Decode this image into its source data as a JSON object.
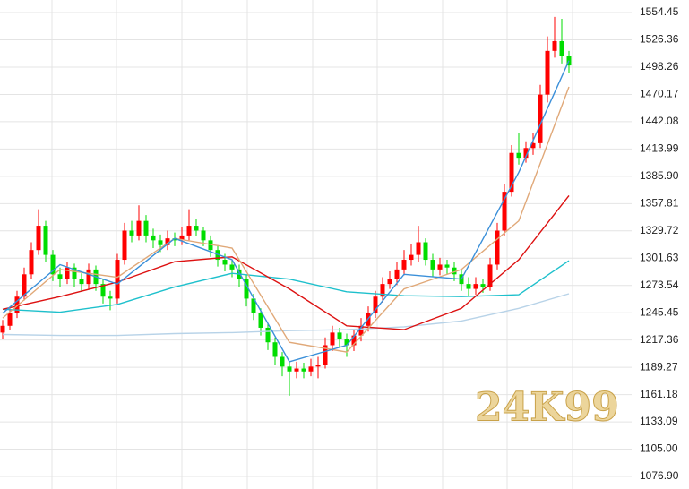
{
  "chart_data": {
    "type": "candlestick",
    "watermark": "24K99",
    "ylim": [
      1064.0,
      1567.4
    ],
    "yticks": [
      1554.45,
      1526.36,
      1498.26,
      1470.17,
      1442.08,
      1413.99,
      {
        "value": 1385.9,
        "label": "1385.90"
      },
      1357.81,
      1329.72,
      1301.63,
      1273.54,
      1245.45,
      1217.36,
      1189.27,
      1161.18,
      1133.09,
      {
        "value": 1105.0,
        "label": "1105.00"
      },
      {
        "value": 1076.9,
        "label": "1076.90"
      }
    ],
    "grid": true,
    "up_color": "#ff0000",
    "down_color": "#00dd00",
    "open": [
      1225,
      1232,
      1245,
      1262,
      1285,
      1310,
      1335,
      1305,
      1285,
      1280,
      1292,
      1280,
      1275,
      1290,
      1275,
      1262,
      1260,
      1300,
      1330,
      1325,
      1340,
      1325,
      1320,
      1315,
      1322,
      1320,
      1325,
      1335,
      1330,
      1320,
      1310,
      1300,
      1295,
      1290,
      1280,
      1260,
      1245,
      1230,
      1215,
      1200,
      1190,
      1185,
      1188,
      1185,
      1190,
      1192,
      1212,
      1225,
      1218,
      1212,
      1222,
      1232,
      1245,
      1262,
      1275,
      1280,
      1290,
      1300,
      1305,
      1318,
      1300,
      1290,
      1295,
      1292,
      1285,
      1275,
      1270,
      1275,
      1272,
      1295,
      1330,
      1370,
      1410,
      1405,
      1415,
      1420,
      1470,
      1515,
      1525,
      1510
    ],
    "high": [
      1238,
      1250,
      1268,
      1292,
      1318,
      1352,
      1340,
      1310,
      1292,
      1298,
      1296,
      1286,
      1296,
      1294,
      1280,
      1268,
      1306,
      1338,
      1340,
      1356,
      1346,
      1332,
      1326,
      1330,
      1328,
      1334,
      1352,
      1342,
      1334,
      1325,
      1315,
      1306,
      1300,
      1295,
      1284,
      1265,
      1250,
      1235,
      1220,
      1205,
      1195,
      1195,
      1194,
      1198,
      1200,
      1220,
      1232,
      1230,
      1224,
      1228,
      1240,
      1252,
      1268,
      1282,
      1288,
      1298,
      1310,
      1316,
      1335,
      1322,
      1306,
      1302,
      1300,
      1298,
      1290,
      1282,
      1282,
      1280,
      1302,
      1338,
      1378,
      1418,
      1430,
      1422,
      1430,
      1480,
      1530,
      1550,
      1548,
      1515
    ],
    "low": [
      1218,
      1228,
      1240,
      1258,
      1280,
      1305,
      1298,
      1278,
      1272,
      1275,
      1272,
      1268,
      1270,
      1268,
      1255,
      1248,
      1255,
      1295,
      1318,
      1320,
      1318,
      1312,
      1308,
      1310,
      1314,
      1315,
      1320,
      1324,
      1314,
      1303,
      1293,
      1288,
      1282,
      1272,
      1252,
      1238,
      1222,
      1207,
      1192,
      1180,
      1160,
      1178,
      1178,
      1180,
      1178,
      1188,
      1206,
      1210,
      1200,
      1206,
      1216,
      1226,
      1240,
      1256,
      1270,
      1274,
      1284,
      1294,
      1298,
      1294,
      1283,
      1284,
      1285,
      1278,
      1268,
      1262,
      1264,
      1266,
      1268,
      1290,
      1325,
      1365,
      1398,
      1400,
      1408,
      1415,
      1462,
      1508,
      1502,
      1492
    ],
    "close": [
      1232,
      1245,
      1262,
      1285,
      1310,
      1335,
      1305,
      1285,
      1280,
      1292,
      1280,
      1275,
      1290,
      1275,
      1262,
      1260,
      1300,
      1330,
      1325,
      1340,
      1325,
      1320,
      1315,
      1322,
      1320,
      1325,
      1335,
      1330,
      1320,
      1310,
      1300,
      1295,
      1290,
      1280,
      1260,
      1245,
      1230,
      1215,
      1200,
      1190,
      1185,
      1188,
      1185,
      1190,
      1192,
      1212,
      1225,
      1218,
      1212,
      1222,
      1232,
      1245,
      1262,
      1275,
      1280,
      1290,
      1300,
      1305,
      1318,
      1300,
      1290,
      1295,
      1292,
      1285,
      1275,
      1270,
      1275,
      1272,
      1295,
      1330,
      1370,
      1410,
      1405,
      1415,
      1420,
      1470,
      1515,
      1525,
      1510,
      1500
    ],
    "lines": [
      {
        "color": "#b8d3e8",
        "x": [
          0,
          8,
          16,
          24,
          32,
          40,
          48,
          56,
          64,
          72,
          79
        ],
        "values": [
          1223,
          1222,
          1222,
          1224,
          1225,
          1227,
          1228,
          1231,
          1237,
          1250,
          1265
        ]
      },
      {
        "color": "#1ec0cc",
        "x": [
          0,
          8,
          16,
          24,
          32,
          40,
          48,
          56,
          64,
          72,
          79
        ],
        "values": [
          1249,
          1246,
          1254,
          1272,
          1286,
          1280,
          1267,
          1263,
          1262,
          1264,
          1299
        ]
      },
      {
        "color": "#dd1111",
        "x": [
          0,
          8,
          16,
          24,
          32,
          40,
          48,
          56,
          64,
          72,
          79
        ],
        "values": [
          1249,
          1262,
          1277,
          1298,
          1303,
          1270,
          1232,
          1228,
          1250,
          1300,
          1366
        ]
      },
      {
        "color": "#e0a878",
        "x": [
          0,
          8,
          16,
          24,
          32,
          40,
          48,
          56,
          64,
          72,
          79
        ],
        "values": [
          1240,
          1290,
          1282,
          1322,
          1312,
          1215,
          1205,
          1270,
          1290,
          1340,
          1478
        ]
      },
      {
        "color": "#3a8fd9",
        "x": [
          0,
          8,
          16,
          24,
          32,
          40,
          48,
          56,
          64,
          72,
          79
        ],
        "values": [
          1245,
          1295,
          1275,
          1322,
          1300,
          1195,
          1212,
          1285,
          1280,
          1390,
          1505
        ]
      }
    ]
  }
}
